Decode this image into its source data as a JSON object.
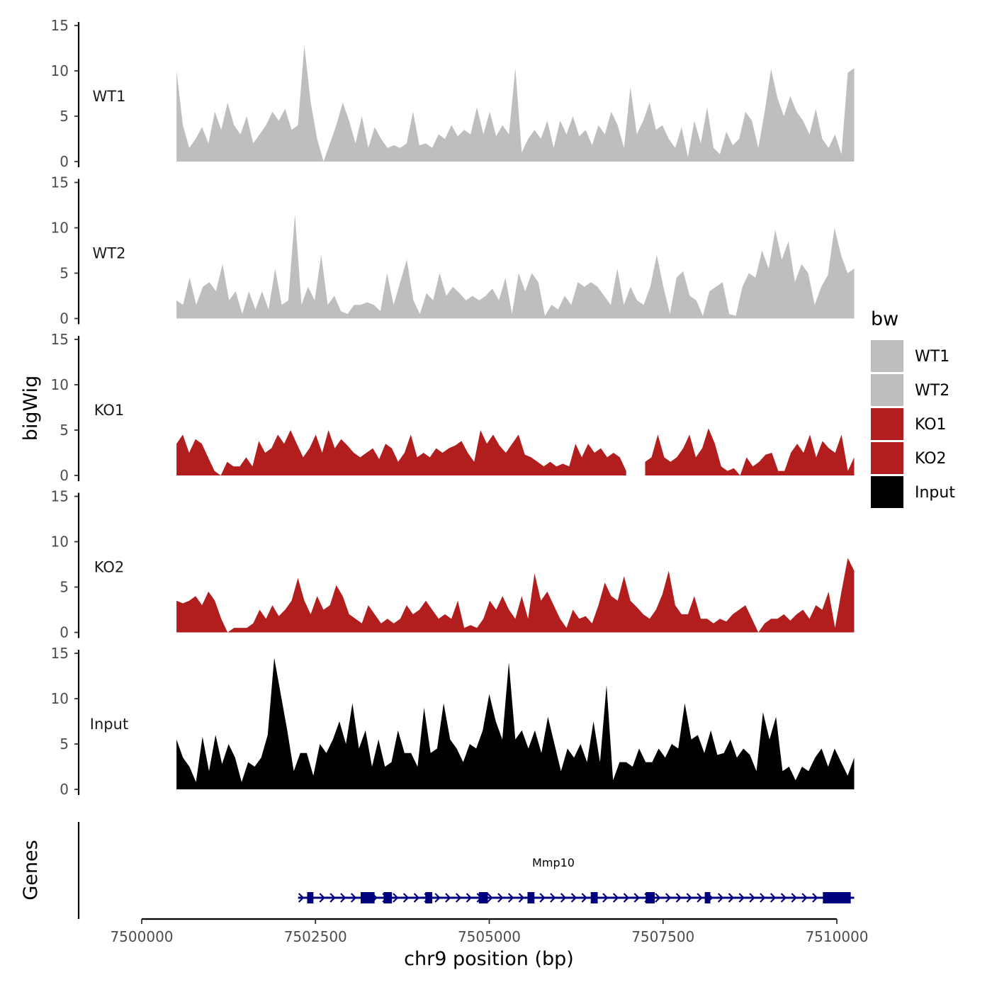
{
  "chart_data": {
    "type": "area",
    "title": "",
    "ylabel": "bigWig",
    "xlabel": "chr9 position (bp)",
    "ylim": [
      0,
      15
    ],
    "yticks": [
      0,
      5,
      10,
      15
    ],
    "xlim": [
      7500000,
      7510000
    ],
    "xtick_labels": [
      "7500000",
      "7502500",
      "7505000",
      "7507500",
      "7510000"
    ],
    "xtick_values": [
      7500000,
      7502500,
      7505000,
      7507500,
      7510000
    ],
    "x_start": 7500500,
    "x_end": 7510250,
    "series": [
      {
        "name": "WT1",
        "color": "#bebebe",
        "values": [
          10,
          4,
          1.5,
          2.5,
          3.8,
          2,
          5.5,
          3.5,
          6.5,
          4,
          3,
          5,
          2,
          3,
          4,
          5.5,
          4.5,
          5.8,
          3.5,
          4,
          12.8,
          6.5,
          2.5,
          0,
          2,
          4,
          6.5,
          4.5,
          2,
          5,
          1.5,
          3.8,
          2.5,
          1.5,
          1.8,
          1.5,
          2,
          5.5,
          1.8,
          2,
          1.5,
          3,
          2.5,
          4,
          2.8,
          3.5,
          3,
          6,
          3,
          5.5,
          2.8,
          4,
          3,
          10.3,
          1,
          2.5,
          3.5,
          2.5,
          4.5,
          1.5,
          4.5,
          3,
          5,
          2.8,
          3.5,
          1.8,
          4,
          3,
          5.5,
          4,
          1.5,
          8.2,
          3,
          4.5,
          6.5,
          3.5,
          4,
          2.5,
          1.5,
          3.8,
          0.5,
          4.5,
          2,
          6,
          1.5,
          0.8,
          3.3,
          1.8,
          2.5,
          5.5,
          4.5,
          1.5,
          5.5,
          10.2,
          7,
          5,
          7.2,
          5.5,
          4.5,
          3,
          5.8,
          2.5,
          1.5,
          3,
          0.8,
          9.8,
          10.3
        ]
      },
      {
        "name": "WT2",
        "color": "#bebebe",
        "values": [
          2,
          1.5,
          4.5,
          1.5,
          3.5,
          4,
          3,
          6,
          2,
          3,
          0.5,
          3,
          1,
          3,
          1,
          5.5,
          1.5,
          2,
          11.5,
          1.5,
          3.5,
          2,
          7,
          1.5,
          2.5,
          0.8,
          0.5,
          1.5,
          1.5,
          1.8,
          1.5,
          0.8,
          5,
          1.5,
          4,
          6.5,
          2,
          0.5,
          2.8,
          2,
          5,
          2.5,
          3.5,
          2.8,
          2,
          2.5,
          2,
          2.5,
          3.3,
          2,
          4.5,
          0.5,
          5,
          3,
          5,
          4,
          0.3,
          1.5,
          1,
          2.5,
          1.5,
          4,
          3.5,
          4,
          3.5,
          2.5,
          1.5,
          5.5,
          1.5,
          3.5,
          2,
          1.5,
          3.5,
          7,
          3.5,
          0.5,
          4.5,
          5.2,
          2.5,
          2,
          0.3,
          3,
          3.5,
          4,
          0.5,
          0.3,
          3.5,
          5,
          4.5,
          7.5,
          5.5,
          9.8,
          6.5,
          8.5,
          4,
          6,
          5,
          1.5,
          3.5,
          4.8,
          10,
          7,
          5,
          5.5
        ]
      },
      {
        "name": "KO1",
        "color": "#b21e1e",
        "values": [
          3.5,
          4.5,
          2.5,
          4,
          3.5,
          2,
          0.5,
          0,
          1.5,
          1,
          1,
          2,
          1,
          3.8,
          2.5,
          3,
          4.5,
          3.5,
          5,
          3.5,
          2,
          3,
          4.5,
          2.5,
          5,
          3,
          4,
          3.3,
          2.5,
          2,
          2.5,
          3,
          1.8,
          3.5,
          3,
          1.5,
          2.5,
          4.5,
          2,
          2.5,
          2,
          3,
          2.5,
          3,
          3.3,
          3.8,
          2.5,
          1.5,
          5,
          3.5,
          4.5,
          3.3,
          2.5,
          3.5,
          4.5,
          2.3,
          2,
          1.5,
          1,
          1.5,
          1,
          1.3,
          1,
          3.5,
          2,
          3.5,
          2.5,
          3,
          2,
          2.5,
          2,
          0.5,
          null,
          null,
          1.5,
          2,
          4.5,
          2,
          1.5,
          2,
          3,
          4.5,
          2,
          3,
          5.2,
          3.5,
          1,
          0.5,
          0.8,
          0,
          2,
          1,
          1.5,
          2.3,
          2.5,
          0.5,
          0.5,
          2.5,
          3.5,
          2.5,
          4.5,
          2,
          3.8,
          3,
          2.5,
          4.5,
          0.5,
          2
        ]
      },
      {
        "name": "KO2",
        "color": "#b21e1e",
        "values": [
          3.5,
          3.2,
          3.5,
          4,
          3,
          4.5,
          3.5,
          1.5,
          0,
          0.5,
          0.5,
          0.5,
          1,
          2.5,
          1.5,
          3,
          1.8,
          2.5,
          3.5,
          6,
          3.5,
          2,
          4,
          2.5,
          3,
          5.2,
          4,
          2,
          1.5,
          1,
          3,
          2,
          1,
          1.5,
          1,
          1.5,
          3,
          2,
          2.5,
          3.5,
          2.5,
          1.5,
          2,
          1.5,
          3.5,
          0.5,
          0.8,
          0.5,
          1.5,
          3.5,
          2.5,
          4,
          2.5,
          1.5,
          4,
          1.5,
          6.5,
          3.5,
          4.5,
          3,
          1.5,
          0.5,
          2.5,
          1.5,
          1.8,
          1,
          3,
          5.5,
          4,
          3.5,
          6.2,
          3.5,
          2.8,
          2,
          1.5,
          2.5,
          4.2,
          6.8,
          3,
          2,
          2,
          4,
          1.5,
          1.5,
          1,
          1.5,
          1.2,
          2,
          2.5,
          3,
          1.5,
          0,
          1,
          1.5,
          1.5,
          2,
          1.3,
          2,
          2.5,
          1.5,
          3,
          2.5,
          4.5,
          0.5,
          4.5,
          8.2,
          6.8
        ]
      },
      {
        "name": "Input",
        "color": "#000000",
        "values": [
          5.5,
          3.5,
          2.5,
          0.8,
          5.8,
          2,
          6,
          2.8,
          5,
          3.5,
          0.8,
          3,
          2.5,
          3.5,
          6,
          14.5,
          10.5,
          6.5,
          2,
          4,
          4,
          1.5,
          5,
          4,
          5.5,
          7.5,
          5,
          9.5,
          4.5,
          6.5,
          2.5,
          5.5,
          2.5,
          3,
          6.5,
          4,
          4,
          2.5,
          9,
          4,
          4.5,
          9.5,
          5.5,
          4.5,
          3,
          5,
          4.5,
          6.5,
          10.5,
          7.5,
          5.5,
          14,
          5.5,
          6.5,
          4.5,
          6.5,
          4,
          8,
          5,
          2,
          4.5,
          3.5,
          5,
          3,
          7.5,
          3,
          11.5,
          1,
          3,
          3,
          2.5,
          4.5,
          3,
          3,
          4.5,
          3.5,
          5,
          4.5,
          9.5,
          5.5,
          6,
          4,
          6.5,
          3.8,
          4,
          5.5,
          3.5,
          4.5,
          3.8,
          2,
          8.5,
          5.5,
          8,
          2,
          2.5,
          1,
          2.5,
          2,
          3.5,
          4.5,
          2.5,
          4.5,
          3,
          1.5,
          3.5
        ]
      }
    ],
    "legend": {
      "title": "bw",
      "entries": [
        {
          "label": "WT1",
          "color": "#bebebe"
        },
        {
          "label": "WT2",
          "color": "#bebebe"
        },
        {
          "label": "KO1",
          "color": "#b21e1e"
        },
        {
          "label": "KO2",
          "color": "#b21e1e"
        },
        {
          "label": "Input",
          "color": "#000000"
        }
      ]
    },
    "genes_track": {
      "ylabel": "Genes",
      "gene": {
        "name": "Mmp10",
        "color": "#00007f",
        "strand": "+",
        "start": 7502250,
        "end": 7510250,
        "exons": [
          [
            7502380,
            7502470
          ],
          [
            7503150,
            7503350
          ],
          [
            7503480,
            7503600
          ],
          [
            7504080,
            7504180
          ],
          [
            7504850,
            7504980
          ],
          [
            7505550,
            7505650
          ],
          [
            7506460,
            7506560
          ],
          [
            7507250,
            7507380
          ],
          [
            7508100,
            7508180
          ],
          [
            7509800,
            7510200
          ]
        ]
      }
    }
  }
}
